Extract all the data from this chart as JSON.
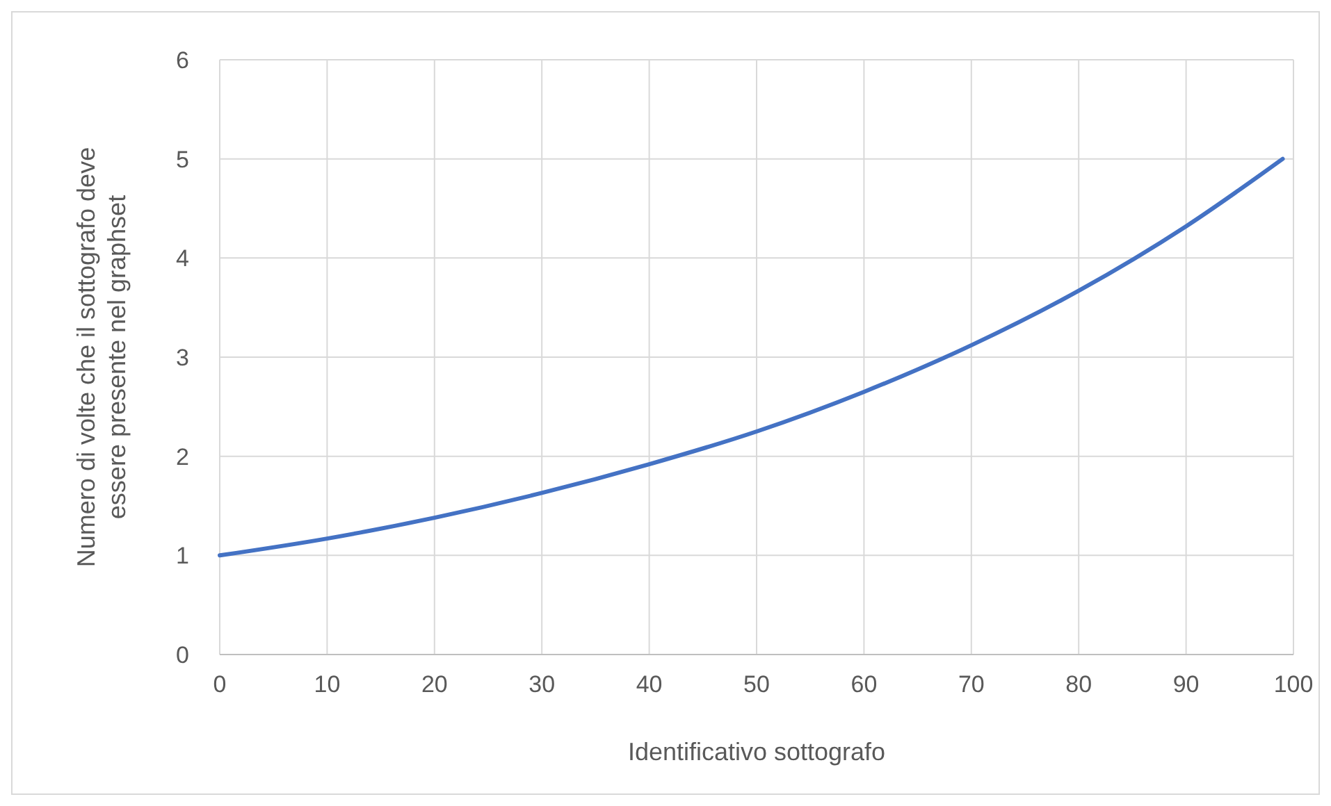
{
  "chart_data": {
    "type": "line",
    "xlabel": "Identificativo sottografo",
    "ylabel": "Numero di volte che il sottografo deve essere presente nel graphset",
    "x": [
      0,
      10,
      20,
      30,
      40,
      50,
      60,
      70,
      80,
      90,
      99
    ],
    "series": [
      {
        "color": "#4472c4",
        "values": [
          1,
          1.17,
          1.38,
          1.63,
          1.92,
          2.25,
          2.65,
          3.12,
          3.67,
          4.32,
          5.0
        ]
      }
    ],
    "xlim": [
      0,
      100
    ],
    "xticks": [
      0,
      10,
      20,
      30,
      40,
      50,
      60,
      70,
      80,
      90,
      100
    ],
    "ylim": [
      0,
      6
    ],
    "yticks": [
      0,
      1,
      2,
      3,
      4,
      5,
      6
    ],
    "grid": true,
    "marker": "none",
    "line_style": "solid"
  }
}
